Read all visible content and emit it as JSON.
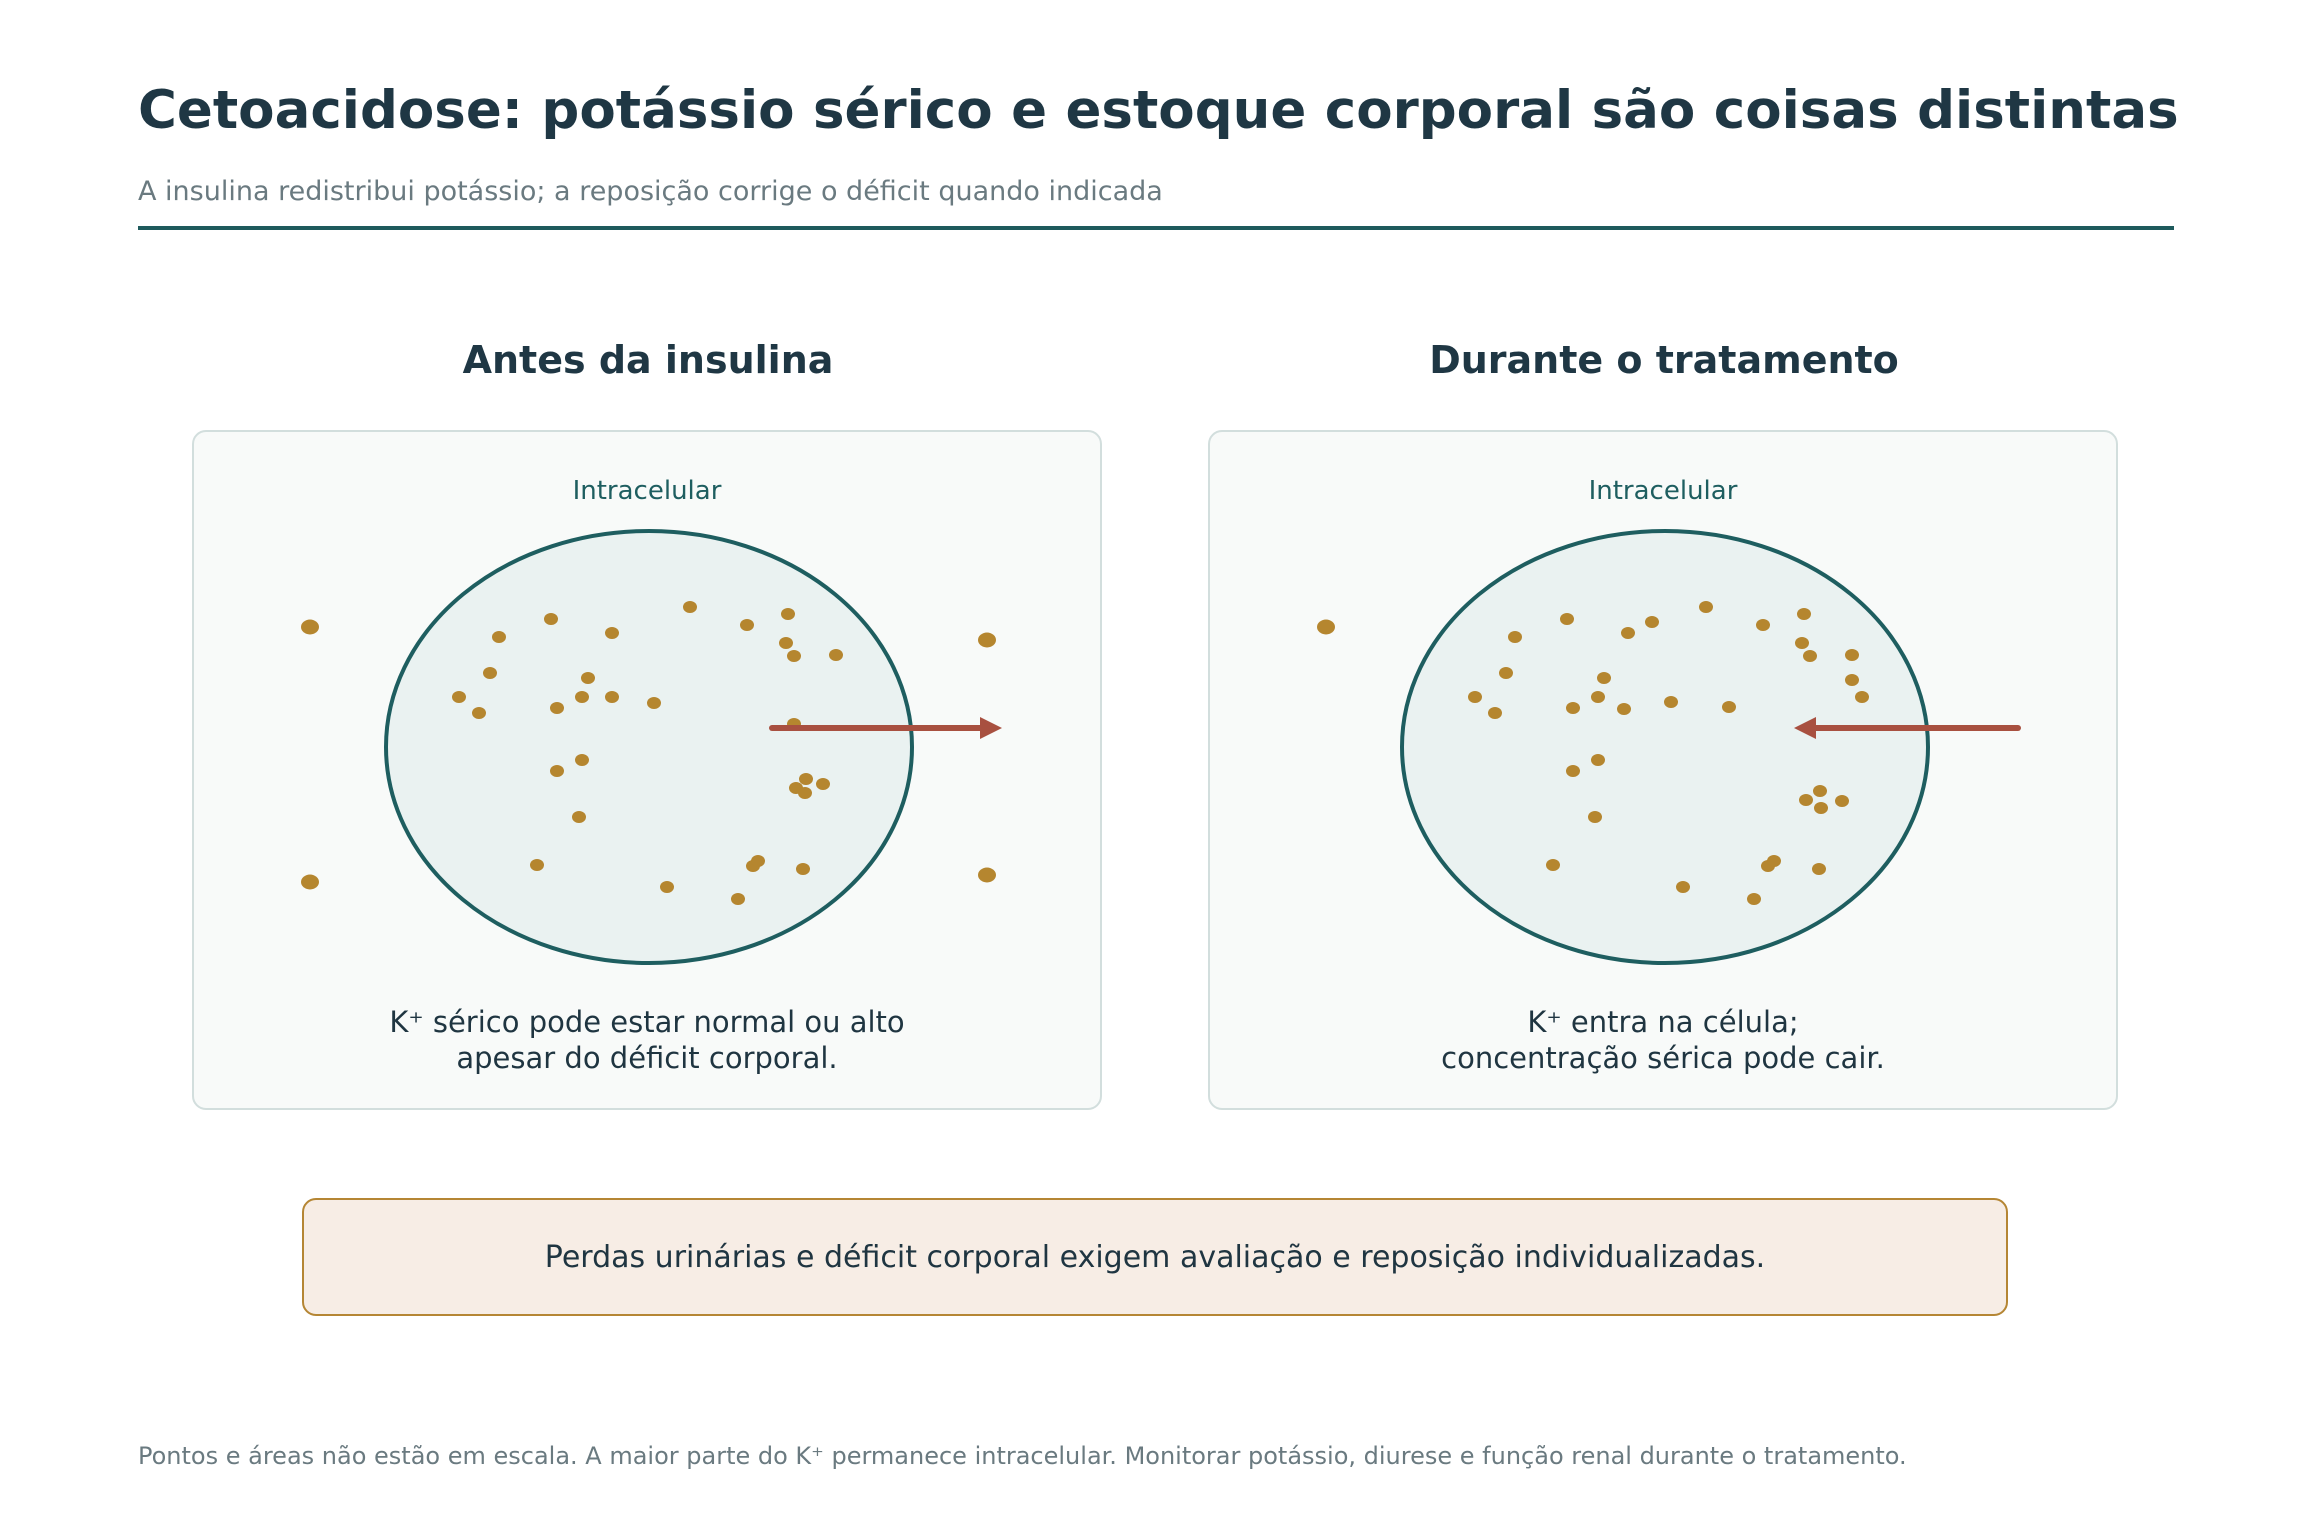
{
  "header": {
    "title": "Cetoacidose: potássio sérico e estoque corporal são coisas distintas",
    "subtitle": "A insulina redistribui potássio; a reposição corrige o déficit quando indicada"
  },
  "panels": [
    {
      "heading": "Antes da insulina",
      "compartment_label": "Intracelular",
      "arrow_direction": "out-of-cell",
      "caption": [
        "K⁺ sérico pode estar normal ou alto",
        "apesar do déficit corporal."
      ],
      "extracellular_dots": 4,
      "intracellular_dots": 31
    },
    {
      "heading": "Durante o tratamento",
      "compartment_label": "Intracelular",
      "arrow_direction": "into-cell",
      "caption": [
        "K⁺ entra na célula;",
        "concentração sérica pode cair."
      ],
      "extracellular_dots": 1,
      "intracellular_dots": 34
    }
  ],
  "note": "Perdas urinárias e déficit corporal exigem avaliação e reposição individualizadas.",
  "footer": "Pontos e áreas não estão em escala. A maior parte do K⁺ permanece intracelular. Monitorar potássio, diurese e função renal durante o tratamento.",
  "colors": {
    "cell_stroke": "#1e5e60",
    "cell_fill": "#eaf2f1",
    "potassium_dot": "#b5862f",
    "arrow": "#a85040",
    "note_border": "#b58634",
    "note_fill": "#f7ede5"
  }
}
